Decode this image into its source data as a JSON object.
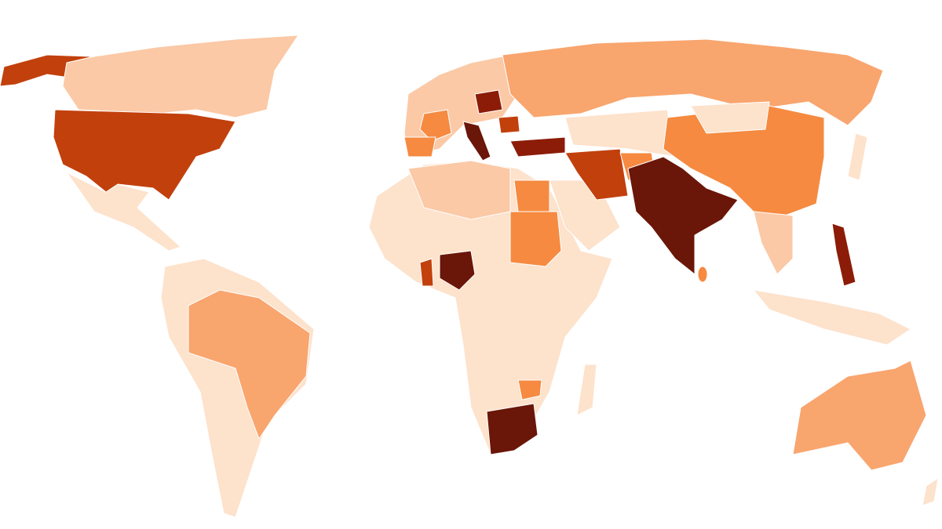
{
  "map": {
    "type": "choropleth",
    "palette": [
      "#fde2cc",
      "#fbc9a6",
      "#f9a56e",
      "#f58a40",
      "#c2400c",
      "#8c1c08",
      "#6a1608"
    ]
  }
}
